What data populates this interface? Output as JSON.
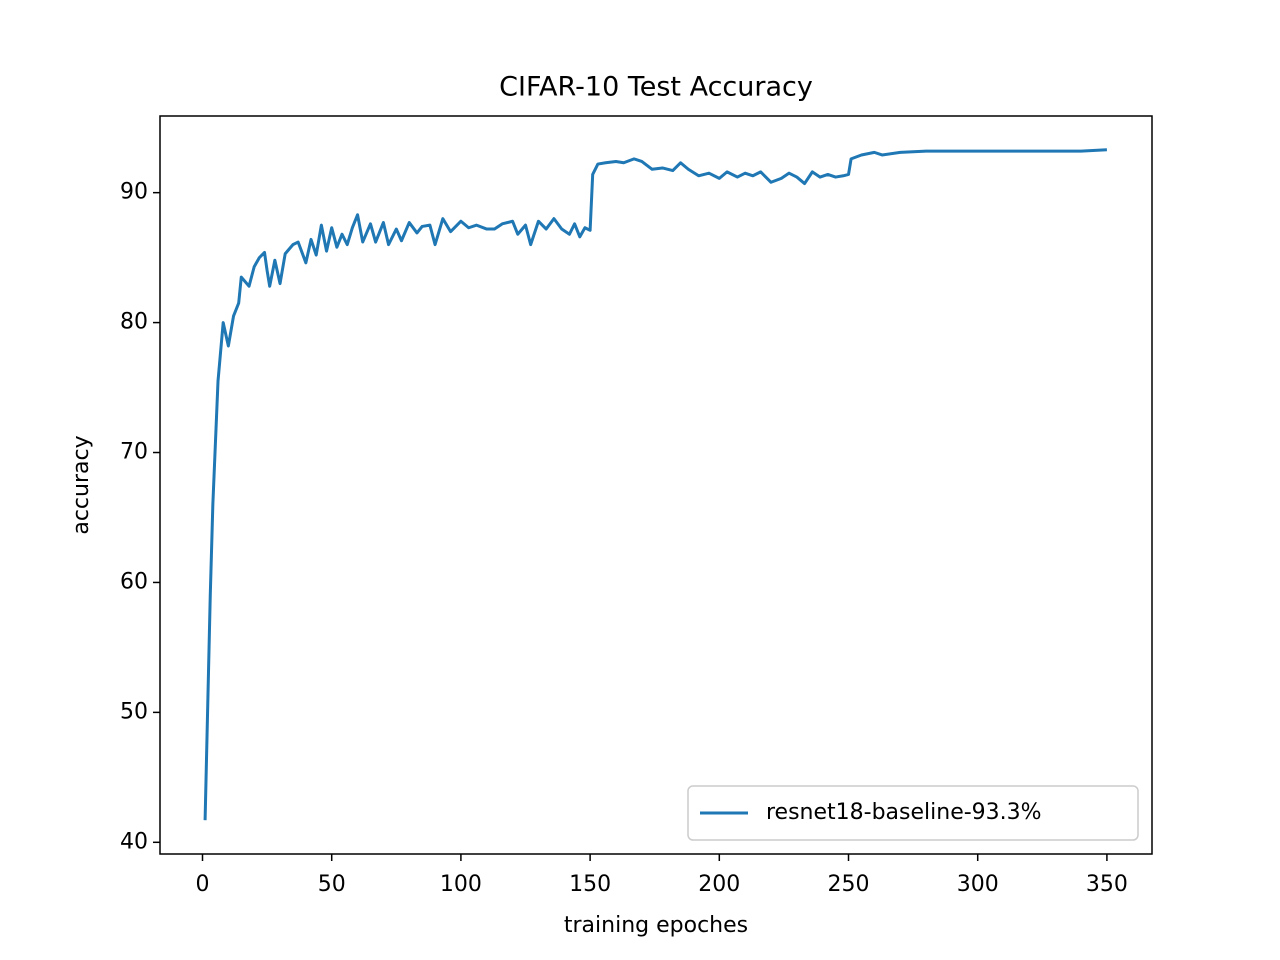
{
  "chart_data": {
    "type": "line",
    "title": "CIFAR-10 Test Accuracy",
    "x_label": "training epoches",
    "y_label": "accuracy",
    "x": [
      1,
      3,
      4,
      6,
      8,
      10,
      12,
      14,
      15,
      18,
      20,
      22,
      24,
      25,
      26,
      28,
      30,
      32,
      35,
      37,
      40,
      42,
      44,
      46,
      48,
      50,
      52,
      54,
      56,
      58,
      60,
      62,
      65,
      67,
      70,
      72,
      75,
      77,
      80,
      83,
      85,
      88,
      90,
      93,
      96,
      100,
      103,
      106,
      110,
      113,
      116,
      120,
      122,
      125,
      127,
      130,
      133,
      136,
      139,
      142,
      144,
      146,
      148,
      150,
      151,
      153,
      156,
      160,
      163,
      167,
      170,
      174,
      178,
      182,
      185,
      188,
      192,
      196,
      200,
      203,
      207,
      210,
      213,
      216,
      220,
      224,
      227,
      230,
      233,
      236,
      239,
      242,
      245,
      248,
      250,
      251,
      255,
      260,
      263,
      270,
      280,
      290,
      300,
      320,
      340,
      350
    ],
    "series": [
      {
        "name": "resnet18-baseline-93.3%",
        "color": "#1f77b4",
        "values": [
          41.7,
          59,
          66,
          75.5,
          80,
          78.2,
          80.5,
          81.5,
          83.5,
          82.8,
          84.3,
          85,
          85.4,
          84,
          82.8,
          84.8,
          83,
          85.3,
          86,
          86.2,
          84.6,
          86.4,
          85.2,
          87.5,
          85.5,
          87.3,
          85.8,
          86.8,
          86,
          87.3,
          88.3,
          86.2,
          87.6,
          86.2,
          87.7,
          86,
          87.2,
          86.3,
          87.7,
          86.9,
          87.4,
          87.5,
          86,
          88,
          87,
          87.8,
          87.3,
          87.5,
          87.2,
          87.2,
          87.6,
          87.8,
          86.8,
          87.5,
          86,
          87.8,
          87.2,
          88,
          87.2,
          86.8,
          87.6,
          86.6,
          87.3,
          87.1,
          91.4,
          92.2,
          92.3,
          92.4,
          92.3,
          92.6,
          92.4,
          91.8,
          91.9,
          91.7,
          92.3,
          91.8,
          91.3,
          91.5,
          91.1,
          91.6,
          91.2,
          91.5,
          91.3,
          91.6,
          90.8,
          91.1,
          91.5,
          91.2,
          90.7,
          91.6,
          91.2,
          91.4,
          91.2,
          91.3,
          91.4,
          92.6,
          92.9,
          93.1,
          92.9,
          93.1,
          93.2,
          93.2,
          93.2,
          93.2,
          93.2,
          93.3
        ]
      }
    ],
    "xlim": [
      -16.45,
      367.45
    ],
    "ylim": [
      39.1,
      95.9
    ],
    "xticks": [
      0,
      50,
      100,
      150,
      200,
      250,
      300,
      350
    ],
    "yticks": [
      40,
      50,
      60,
      70,
      80,
      90
    ],
    "legend": "lower right"
  }
}
